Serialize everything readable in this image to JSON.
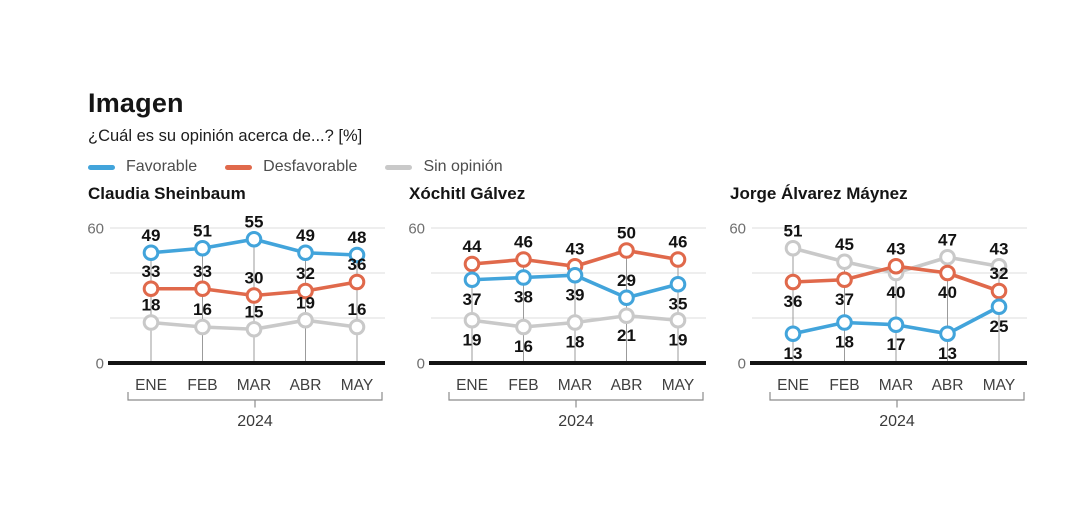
{
  "chart_data": {
    "type": "line",
    "title": "Imagen",
    "subtitle": "¿Cuál es su opinión acerca de...? [%]",
    "unit": "%",
    "x_categories": [
      "ENE",
      "FEB",
      "MAR",
      "ABR",
      "MAY"
    ],
    "x_group_label": "2024",
    "ylim": [
      0,
      60
    ],
    "yticks": [
      0,
      60
    ],
    "gridlines": [
      20,
      40,
      60
    ],
    "grid": true,
    "legend_position": "top",
    "marker": "open-circle",
    "series_meta": [
      {
        "name": "Favorable",
        "color": "#42A4DB"
      },
      {
        "name": "Desfavorable",
        "color": "#E0694B"
      },
      {
        "name": "Sin opinión",
        "color": "#C9C9C9"
      }
    ],
    "panels": [
      {
        "title": "Claudia Sheinbaum",
        "series": [
          {
            "name": "Favorable",
            "values": [
              49,
              51,
              55,
              49,
              48
            ],
            "label_side": [
              "above",
              "above",
              "above",
              "above",
              "above"
            ]
          },
          {
            "name": "Desfavorable",
            "values": [
              33,
              33,
              30,
              32,
              36
            ],
            "label_side": [
              "above",
              "above",
              "above",
              "above",
              "above"
            ]
          },
          {
            "name": "Sin opinión",
            "values": [
              18,
              16,
              15,
              19,
              16
            ],
            "label_side": [
              "above",
              "above",
              "above",
              "above",
              "above"
            ]
          }
        ]
      },
      {
        "title": "Xóchitl Gálvez",
        "series": [
          {
            "name": "Favorable",
            "values": [
              37,
              38,
              39,
              29,
              35
            ],
            "label_side": [
              "below",
              "below",
              "below",
              "above",
              "below"
            ]
          },
          {
            "name": "Desfavorable",
            "values": [
              44,
              46,
              43,
              50,
              46
            ],
            "label_side": [
              "above",
              "above",
              "above",
              "above",
              "above"
            ]
          },
          {
            "name": "Sin opinión",
            "values": [
              19,
              16,
              18,
              21,
              19
            ],
            "label_side": [
              "below",
              "below",
              "below",
              "below",
              "below"
            ]
          }
        ]
      },
      {
        "title": "Jorge Álvarez Máynez",
        "series": [
          {
            "name": "Favorable",
            "values": [
              13,
              18,
              17,
              13,
              25
            ],
            "label_side": [
              "below",
              "below",
              "below",
              "below",
              "below"
            ]
          },
          {
            "name": "Desfavorable",
            "values": [
              36,
              37,
              43,
              40,
              32
            ],
            "label_side": [
              "below",
              "below",
              "above",
              "below",
              "above"
            ]
          },
          {
            "name": "Sin opinión",
            "values": [
              51,
              45,
              40,
              47,
              43
            ],
            "label_side": [
              "above",
              "above",
              "below",
              "above",
              "above"
            ]
          }
        ]
      }
    ],
    "style": {
      "grid_color": "#dedede",
      "drop_line_color": "#9b9b9b",
      "axis_color": "#141414",
      "label_color": "#121212",
      "ytick_color": "#6f6f6f",
      "xtick_color": "#3f3f3f",
      "bracket_color": "#8c8c8c"
    }
  }
}
